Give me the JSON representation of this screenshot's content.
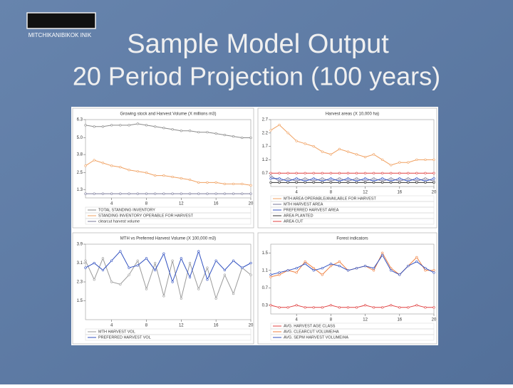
{
  "slide": {
    "logo_text": "MITCHIKANIBIKOK INIK",
    "title": "Sample Model Output",
    "subtitle": "20 Period Projection (100 years)"
  },
  "chart_data": [
    {
      "type": "line",
      "title": "Growing stock and Harvest Volume (X millions m3)",
      "x": [
        1,
        2,
        3,
        4,
        5,
        6,
        7,
        8,
        9,
        10,
        11,
        12,
        13,
        14,
        15,
        16,
        17,
        18,
        19,
        20
      ],
      "xlim": [
        1,
        20
      ],
      "xticks": [
        4,
        8,
        12,
        16,
        20
      ],
      "ylim": [
        0.7,
        6.3
      ],
      "yticks": [
        1.3,
        2.5,
        3.8,
        {
          "value": 5,
          "label": "5.0"
        },
        6.3
      ],
      "series": [
        {
          "name": "TOTAL STANDING INVENTORY",
          "color": "#8a8a8a",
          "values": [
            5.9,
            5.8,
            5.8,
            5.9,
            5.9,
            5.9,
            6.0,
            5.9,
            5.8,
            5.7,
            5.6,
            5.5,
            5.5,
            5.4,
            5.4,
            5.3,
            5.2,
            5.1,
            5.0,
            5.0
          ]
        },
        {
          "name": "STANDING INVENTORY OPERABLE FOR HARVEST",
          "color": "#f0a060",
          "values": [
            3.0,
            3.4,
            3.2,
            3.0,
            2.9,
            2.7,
            2.6,
            2.5,
            2.3,
            2.3,
            2.2,
            2.1,
            2.0,
            1.8,
            1.8,
            1.8,
            1.7,
            1.7,
            1.7,
            1.6
          ]
        },
        {
          "name": "clearcut harvest volume",
          "color": "#7a7a9a",
          "values": [
            1.0,
            1.0,
            1.0,
            1.0,
            1.0,
            1.0,
            1.0,
            1.0,
            1.0,
            1.0,
            1.0,
            1.0,
            1.0,
            1.0,
            1.0,
            1.0,
            1.0,
            1.0,
            1.0,
            1.0
          ]
        }
      ]
    },
    {
      "type": "line",
      "title": "Harvest areas (X 10,000 ha)",
      "x": [
        1,
        2,
        3,
        4,
        5,
        6,
        7,
        8,
        9,
        10,
        11,
        12,
        13,
        14,
        15,
        16,
        17,
        18,
        19,
        20
      ],
      "xlim": [
        1,
        20
      ],
      "xticks": [
        4,
        8,
        12,
        16,
        20
      ],
      "ylim": [
        0.2,
        2.7
      ],
      "yticks": [
        0.7,
        1.2,
        1.7,
        2.2,
        2.7
      ],
      "series": [
        {
          "name": "MTH AREA OPERABLE/AVAILABLE FOR HARVEST",
          "color": "#f0a060",
          "values": [
            2.3,
            2.5,
            2.2,
            1.9,
            1.8,
            1.7,
            1.5,
            1.4,
            1.6,
            1.5,
            1.4,
            1.3,
            1.4,
            1.2,
            1.0,
            1.1,
            1.1,
            1.2,
            1.2,
            1.2
          ]
        },
        {
          "name": "MTH HARVEST AREA",
          "color": "#7a7a9a",
          "values": [
            0.6,
            0.4,
            0.5,
            0.4,
            0.5,
            0.4,
            0.5,
            0.4,
            0.5,
            0.4,
            0.5,
            0.4,
            0.5,
            0.4,
            0.5,
            0.4,
            0.5,
            0.4,
            0.5,
            0.4
          ]
        },
        {
          "name": "PREFERRED HARVEST AREA",
          "color": "#3050c0",
          "values": [
            0.5,
            0.5,
            0.4,
            0.5,
            0.4,
            0.5,
            0.4,
            0.5,
            0.4,
            0.5,
            0.4,
            0.5,
            0.4,
            0.5,
            0.4,
            0.5,
            0.4,
            0.5,
            0.4,
            0.5
          ]
        },
        {
          "name": "AREA PLANTED",
          "color": "#303030",
          "values": [
            0.35,
            0.35,
            0.35,
            0.35,
            0.35,
            0.35,
            0.35,
            0.35,
            0.35,
            0.35,
            0.35,
            0.35,
            0.35,
            0.35,
            0.35,
            0.35,
            0.35,
            0.35,
            0.35,
            0.35
          ]
        },
        {
          "name": "AREA CUT",
          "color": "#e04040",
          "values": [
            0.7,
            0.7,
            0.7,
            0.7,
            0.7,
            0.7,
            0.7,
            0.7,
            0.7,
            0.7,
            0.7,
            0.7,
            0.7,
            0.7,
            0.7,
            0.7,
            0.7,
            0.7,
            0.7,
            0.7
          ]
        }
      ]
    },
    {
      "type": "line",
      "title": "MTH vs Preferred Harvest Volume (X 100,000 m3)",
      "x": [
        1,
        2,
        3,
        4,
        5,
        6,
        7,
        8,
        9,
        10,
        11,
        12,
        13,
        14,
        15,
        16,
        17,
        18,
        19,
        20
      ],
      "xlim": [
        1,
        20
      ],
      "xticks": [
        4,
        8,
        12,
        16,
        20
      ],
      "ylim": [
        0.7,
        3.9
      ],
      "yticks": [
        1.5,
        2.3,
        3.1,
        3.9
      ],
      "series": [
        {
          "name": "MTH HARVEST VOL",
          "color": "#9a9a9a",
          "values": [
            3.2,
            2.4,
            3.3,
            2.3,
            2.2,
            2.6,
            3.2,
            2.0,
            3.1,
            1.7,
            3.2,
            1.6,
            3.1,
            2.0,
            2.9,
            1.6,
            2.6,
            1.8,
            2.9,
            2.6
          ]
        },
        {
          "name": "PREFERRED HARVEST VOL",
          "color": "#3050c0",
          "values": [
            2.9,
            3.1,
            2.8,
            3.2,
            3.6,
            2.9,
            3.0,
            3.3,
            2.8,
            3.5,
            2.3,
            3.3,
            2.5,
            3.6,
            2.4,
            3.2,
            2.8,
            3.2,
            2.9,
            3.1
          ]
        }
      ]
    },
    {
      "type": "line",
      "title": "Forest indicators",
      "x": [
        1,
        2,
        3,
        4,
        5,
        6,
        7,
        8,
        9,
        10,
        11,
        12,
        13,
        14,
        15,
        16,
        17,
        18,
        19,
        20
      ],
      "xlim": [
        1,
        20
      ],
      "xticks": [
        4,
        8,
        12,
        16,
        20
      ],
      "ylim": [
        0.1,
        1.7
      ],
      "yticks": [
        0.3,
        0.7,
        1.1,
        1.5
      ],
      "series": [
        {
          "name": "AVG. HARVEST AGE CLASS",
          "color": "#e04040",
          "values": [
            0.3,
            0.25,
            0.25,
            0.3,
            0.25,
            0.25,
            0.25,
            0.3,
            0.25,
            0.25,
            0.25,
            0.3,
            0.25,
            0.25,
            0.3,
            0.25,
            0.25,
            0.3,
            0.25,
            0.25
          ]
        },
        {
          "name": "AVG. CLEARCUT VOLUME/HA",
          "color": "#f08040",
          "values": [
            0.95,
            1.0,
            1.1,
            1.05,
            1.3,
            1.15,
            1.0,
            1.2,
            1.3,
            1.1,
            1.15,
            1.2,
            1.1,
            1.5,
            1.15,
            1.0,
            1.2,
            1.4,
            1.1,
            1.1
          ]
        },
        {
          "name": "AVG. SEPM HARVEST VOLUME/HA",
          "color": "#3050c0",
          "values": [
            1.0,
            1.05,
            1.1,
            1.15,
            1.25,
            1.1,
            1.15,
            1.25,
            1.2,
            1.1,
            1.15,
            1.2,
            1.15,
            1.45,
            1.1,
            1.0,
            1.2,
            1.3,
            1.15,
            1.05
          ]
        }
      ]
    }
  ]
}
